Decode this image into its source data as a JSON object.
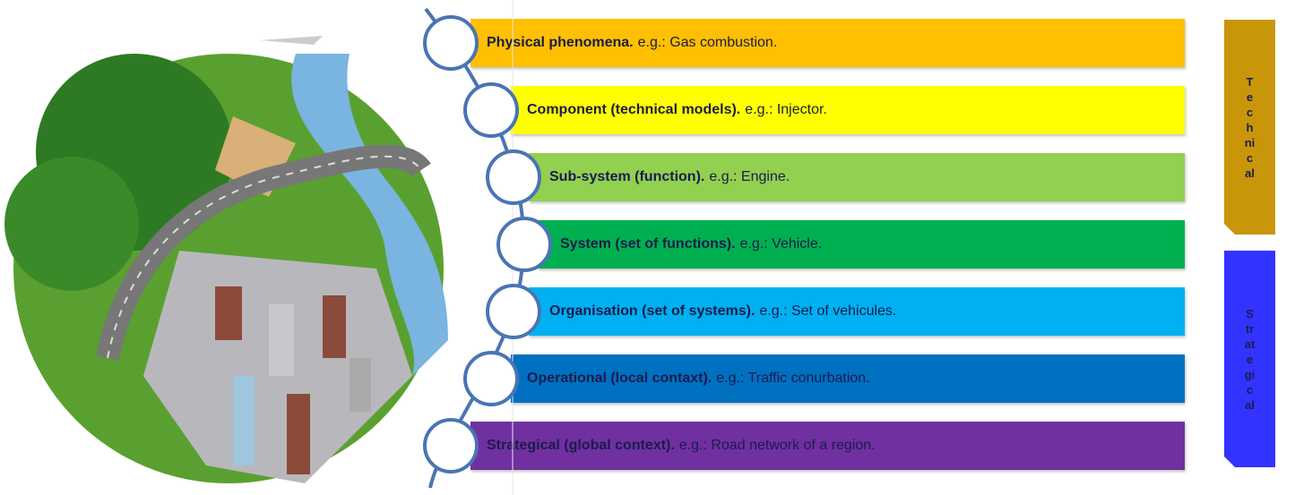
{
  "layers": [
    {
      "label": "Physical phenomena.",
      "example": "e.g.: Gas combustion.",
      "color": "#ffc000"
    },
    {
      "label": "Component (technical models).",
      "example": "e.g.: Injector.",
      "color": "#ffff00"
    },
    {
      "label": "Sub-system (function).",
      "example": "e.g.: Engine.",
      "color": "#92d050"
    },
    {
      "label": "System (set of functions).",
      "example": "e.g.: Vehicle.",
      "color": "#00b050"
    },
    {
      "label": "Organisation (set of systems).",
      "example": "e.g.: Set of vehicules.",
      "color": "#00b0f0"
    },
    {
      "label": "Operational (local contaxt).",
      "example": "e.g.: Traffic conurbation.",
      "color": "#0070c0"
    },
    {
      "label": "Strategical (global context).",
      "example": "e.g.: Road network of a region.",
      "color": "#7030a0"
    }
  ],
  "side_labels": [
    {
      "text": "Technical",
      "color": "#c9960a"
    },
    {
      "text": "Strategical",
      "color": "#3333ff"
    }
  ]
}
